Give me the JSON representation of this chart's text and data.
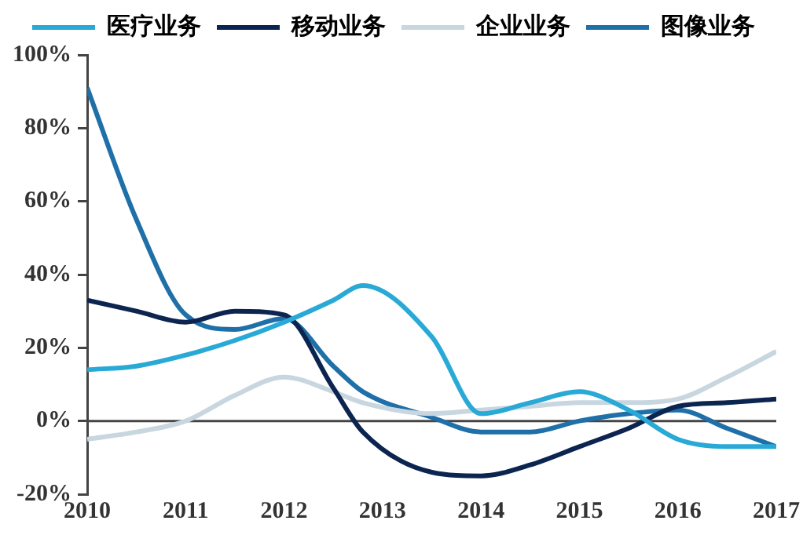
{
  "chart_data": {
    "type": "line",
    "legend": "top",
    "grid": false,
    "marker": "none",
    "line_style": "solid",
    "x": [
      2010,
      2010.5,
      2011,
      2011.5,
      2012,
      2012.5,
      2012.8,
      2013.5,
      2014,
      2014.5,
      2015,
      2015.5,
      2016,
      2016.5,
      2017
    ],
    "xlim": [
      2010,
      2017
    ],
    "xticks": [
      2010,
      2011,
      2012,
      2013,
      2014,
      2015,
      2016,
      2017
    ],
    "ylim": [
      -20,
      100
    ],
    "ref_lines": [
      {
        "axis": "y",
        "value": 0,
        "color": "#444444"
      }
    ],
    "yticks": [
      {
        "value": -20,
        "label": "-20%"
      },
      {
        "value": 0,
        "label": "0%"
      },
      {
        "value": 20,
        "label": "20%"
      },
      {
        "value": 40,
        "label": "40%"
      },
      {
        "value": 60,
        "label": "60%"
      },
      {
        "value": 80,
        "label": "80%"
      },
      {
        "value": 100,
        "label": "100%"
      }
    ],
    "series": [
      {
        "name": "医疗业务",
        "color": "#29a9d6",
        "values": [
          14,
          15,
          18,
          22,
          27,
          33,
          37,
          23,
          2,
          5,
          8,
          3,
          -5,
          -7,
          -7
        ]
      },
      {
        "name": "移动业务",
        "color": "#0c2550",
        "values": [
          33,
          30,
          27,
          30,
          29,
          9,
          -3,
          -14,
          -15,
          -12,
          -7,
          -2,
          4,
          5,
          6
        ]
      },
      {
        "name": "企业业务",
        "color": "#c8d6e0",
        "values": [
          -5,
          -3,
          0,
          7,
          12,
          8,
          5,
          2,
          3,
          4,
          5,
          5,
          6,
          12,
          19
        ]
      },
      {
        "name": "图像业务",
        "color": "#1f6fa8",
        "values": [
          91,
          55,
          29,
          25,
          28,
          15,
          8,
          1,
          -3,
          -3,
          0,
          2,
          3,
          -2,
          -7
        ]
      }
    ]
  }
}
